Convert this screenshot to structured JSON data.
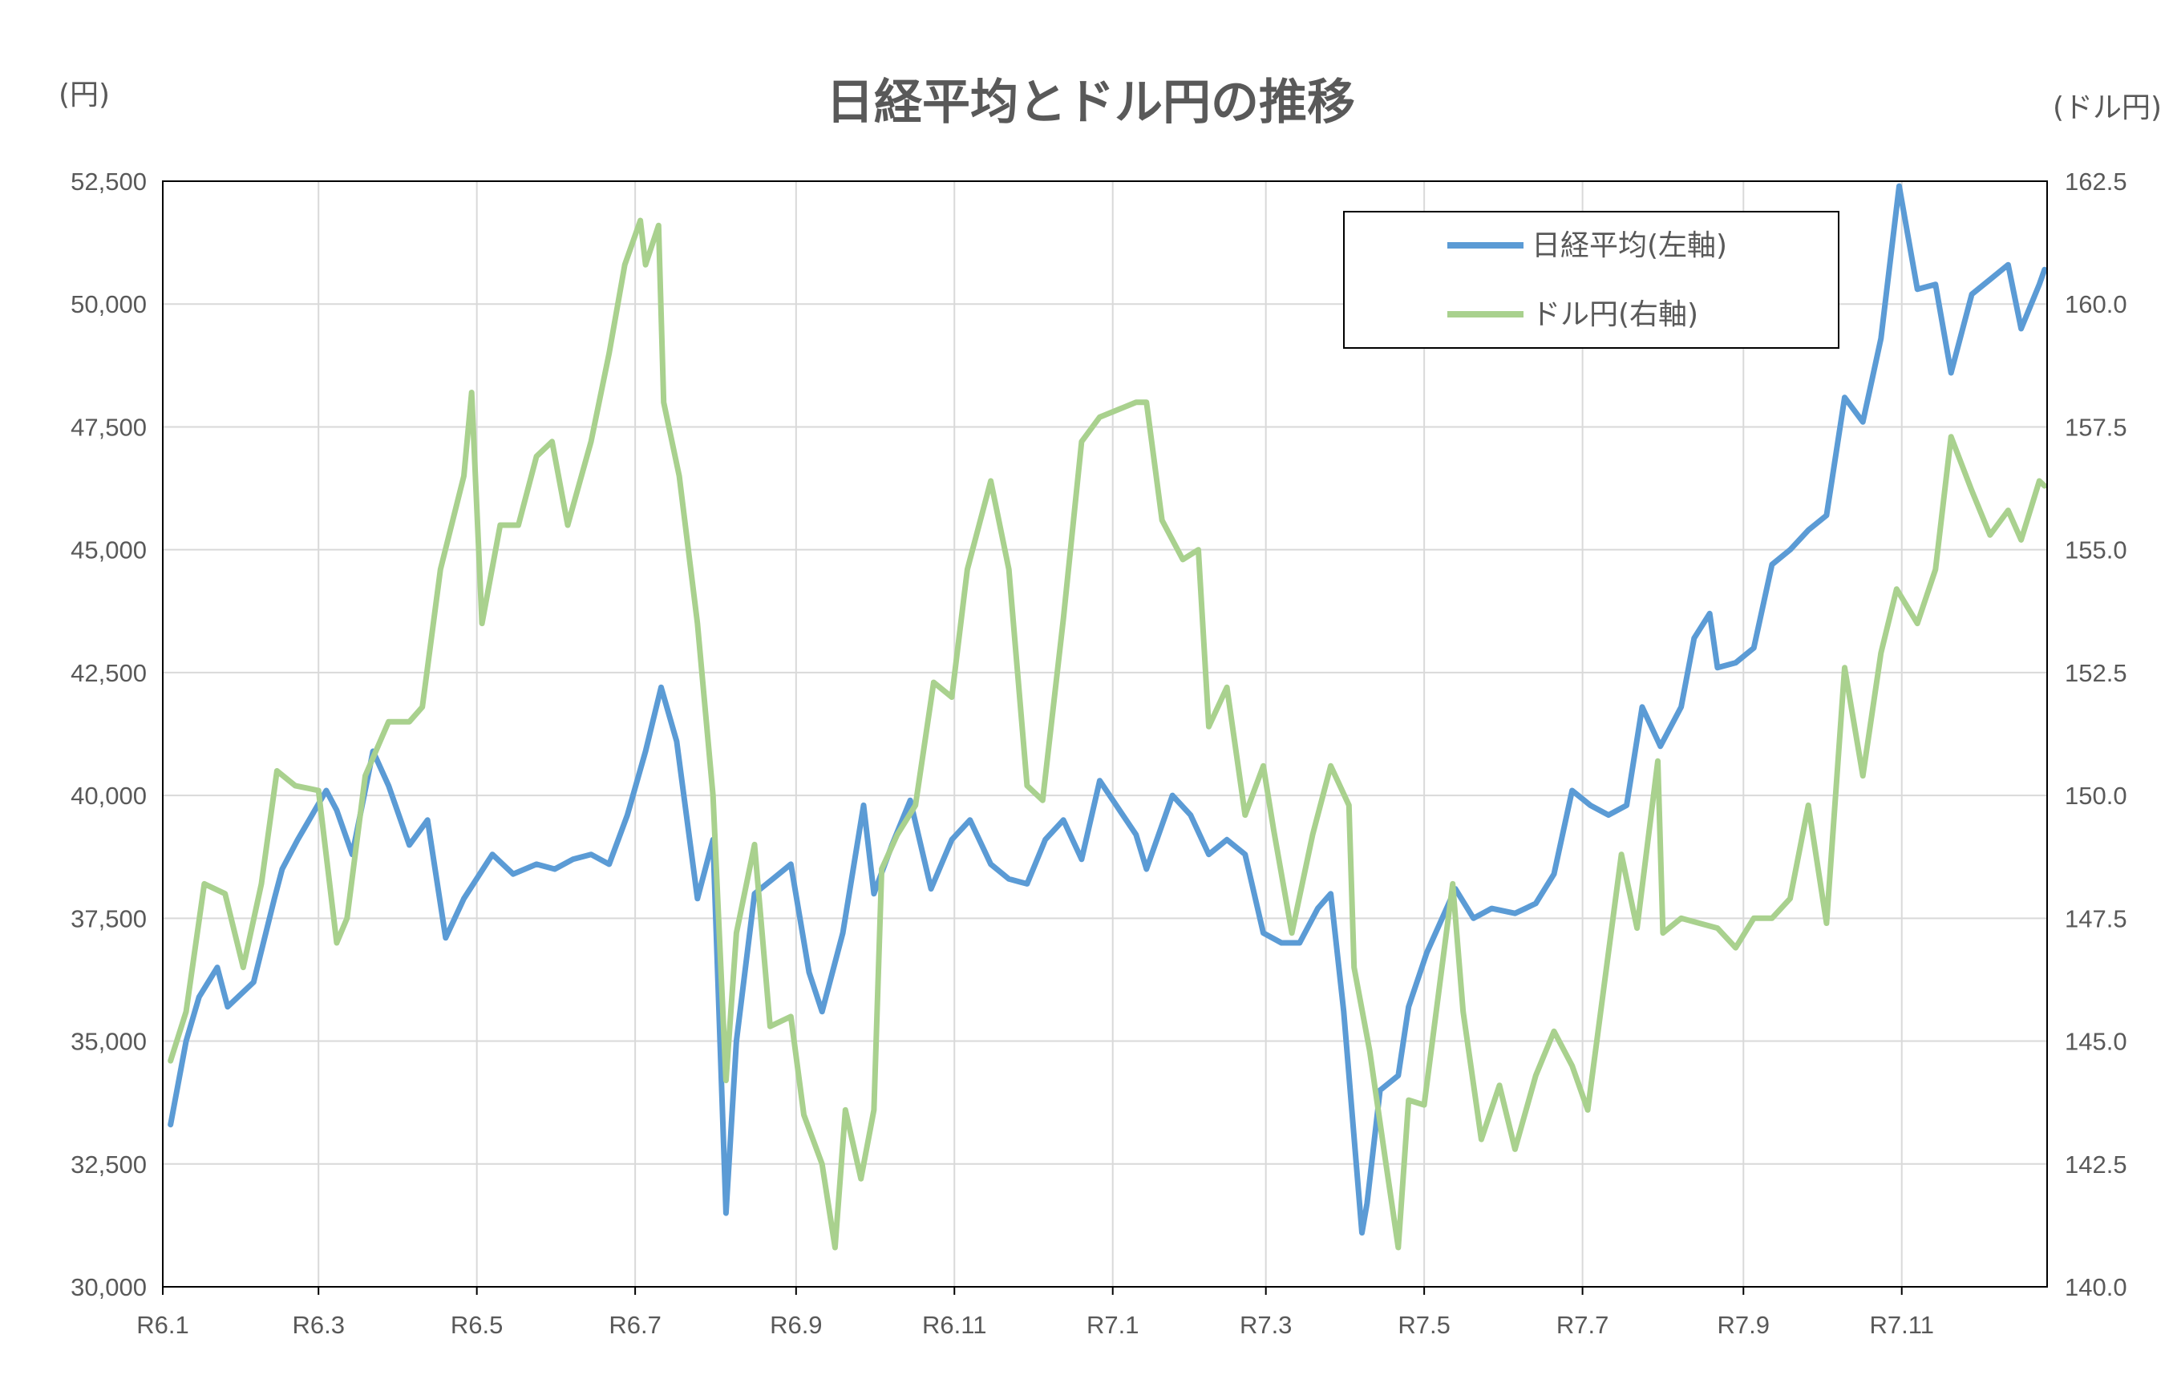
{
  "chart_data": {
    "type": "line",
    "title": "日経平均とドル円の推移",
    "left_unit": "(円)",
    "right_unit": "(ドル円)",
    "x_tick_labels": [
      "R6.1",
      "R6.3",
      "R6.5",
      "R6.7",
      "R6.9",
      "R6.11",
      "R7.1",
      "R7.3",
      "R7.5",
      "R7.7",
      "R7.9",
      "R7.11"
    ],
    "x_tick_dates": [
      "2024-01-01",
      "2024-03-01",
      "2024-05-01",
      "2024-07-01",
      "2024-09-01",
      "2024-11-01",
      "2025-01-01",
      "2025-03-01",
      "2025-05-01",
      "2025-07-01",
      "2025-09-01",
      "2025-11-01"
    ],
    "xlim": [
      "2024-01-01",
      "2025-12-27"
    ],
    "left_axis": {
      "ylim": [
        30000,
        52500
      ],
      "tick_labels": [
        "30,000",
        "32,500",
        "35,000",
        "37,500",
        "40,000",
        "42,500",
        "45,000",
        "47,500",
        "50,000",
        "52,500"
      ]
    },
    "right_axis": {
      "ylim": [
        140.0,
        162.5
      ],
      "tick_labels": [
        "140.0",
        "142.5",
        "145.0",
        "147.5",
        "150.0",
        "152.5",
        "155.0",
        "157.5",
        "160.0",
        "162.5"
      ]
    },
    "grid": true,
    "legend_placement": "top-right",
    "series": [
      {
        "name": "日経平均(左軸)",
        "axis": "left",
        "color": "#5B9BD5",
        "points": [
          [
            "2024-01-04",
            33300
          ],
          [
            "2024-01-10",
            35000
          ],
          [
            "2024-01-15",
            35900
          ],
          [
            "2024-01-22",
            36500
          ],
          [
            "2024-01-26",
            35700
          ],
          [
            "2024-02-05",
            36200
          ],
          [
            "2024-02-13",
            37900
          ],
          [
            "2024-02-16",
            38500
          ],
          [
            "2024-02-22",
            39100
          ],
          [
            "2024-03-04",
            40100
          ],
          [
            "2024-03-08",
            39700
          ],
          [
            "2024-03-14",
            38800
          ],
          [
            "2024-03-22",
            40900
          ],
          [
            "2024-03-28",
            40200
          ],
          [
            "2024-04-05",
            38990
          ],
          [
            "2024-04-12",
            39500
          ],
          [
            "2024-04-19",
            37100
          ],
          [
            "2024-04-26",
            37900
          ],
          [
            "2024-05-07",
            38800
          ],
          [
            "2024-05-15",
            38400
          ],
          [
            "2024-05-24",
            38600
          ],
          [
            "2024-05-31",
            38500
          ],
          [
            "2024-06-07",
            38700
          ],
          [
            "2024-06-14",
            38800
          ],
          [
            "2024-06-21",
            38600
          ],
          [
            "2024-06-28",
            39600
          ],
          [
            "2024-07-05",
            40900
          ],
          [
            "2024-07-11",
            42200
          ],
          [
            "2024-07-17",
            41100
          ],
          [
            "2024-07-25",
            37900
          ],
          [
            "2024-07-31",
            39100
          ],
          [
            "2024-08-05",
            31500
          ],
          [
            "2024-08-09",
            35000
          ],
          [
            "2024-08-16",
            38000
          ],
          [
            "2024-08-23",
            38300
          ],
          [
            "2024-08-30",
            38600
          ],
          [
            "2024-09-06",
            36400
          ],
          [
            "2024-09-11",
            35600
          ],
          [
            "2024-09-19",
            37200
          ],
          [
            "2024-09-27",
            39800
          ],
          [
            "2024-10-01",
            38000
          ],
          [
            "2024-10-08",
            39000
          ],
          [
            "2024-10-15",
            39900
          ],
          [
            "2024-10-23",
            38100
          ],
          [
            "2024-10-31",
            39100
          ],
          [
            "2024-11-07",
            39500
          ],
          [
            "2024-11-15",
            38600
          ],
          [
            "2024-11-22",
            38300
          ],
          [
            "2024-11-29",
            38200
          ],
          [
            "2024-12-06",
            39100
          ],
          [
            "2024-12-13",
            39500
          ],
          [
            "2024-12-20",
            38700
          ],
          [
            "2024-12-27",
            40300
          ],
          [
            "2025-01-10",
            39200
          ],
          [
            "2025-01-14",
            38500
          ],
          [
            "2025-01-24",
            40000
          ],
          [
            "2025-01-31",
            39600
          ],
          [
            "2025-02-07",
            38800
          ],
          [
            "2025-02-14",
            39100
          ],
          [
            "2025-02-21",
            38800
          ],
          [
            "2025-02-28",
            37200
          ],
          [
            "2025-03-07",
            37000
          ],
          [
            "2025-03-14",
            37000
          ],
          [
            "2025-03-21",
            37700
          ],
          [
            "2025-03-26",
            38000
          ],
          [
            "2025-03-31",
            35600
          ],
          [
            "2025-04-07",
            31100
          ],
          [
            "2025-04-09",
            31700
          ],
          [
            "2025-04-14",
            34000
          ],
          [
            "2025-04-21",
            34300
          ],
          [
            "2025-04-25",
            35700
          ],
          [
            "2025-05-02",
            36800
          ],
          [
            "2025-05-13",
            38100
          ],
          [
            "2025-05-20",
            37500
          ],
          [
            "2025-05-27",
            37700
          ],
          [
            "2025-06-05",
            37600
          ],
          [
            "2025-06-13",
            37800
          ],
          [
            "2025-06-20",
            38400
          ],
          [
            "2025-06-27",
            40100
          ],
          [
            "2025-07-04",
            39800
          ],
          [
            "2025-07-11",
            39600
          ],
          [
            "2025-07-18",
            39800
          ],
          [
            "2025-07-24",
            41800
          ],
          [
            "2025-07-31",
            41000
          ],
          [
            "2025-08-08",
            41800
          ],
          [
            "2025-08-13",
            43200
          ],
          [
            "2025-08-19",
            43700
          ],
          [
            "2025-08-22",
            42600
          ],
          [
            "2025-08-29",
            42700
          ],
          [
            "2025-09-05",
            43000
          ],
          [
            "2025-09-12",
            44700
          ],
          [
            "2025-09-19",
            45000
          ],
          [
            "2025-09-26",
            45400
          ],
          [
            "2025-10-03",
            45700
          ],
          [
            "2025-10-10",
            48100
          ],
          [
            "2025-10-17",
            47600
          ],
          [
            "2025-10-24",
            49300
          ],
          [
            "2025-10-31",
            52400
          ],
          [
            "2025-11-07",
            50300
          ],
          [
            "2025-11-14",
            50400
          ],
          [
            "2025-11-20",
            48600
          ],
          [
            "2025-11-28",
            50200
          ],
          [
            "2025-12-05",
            50500
          ],
          [
            "2025-12-12",
            50800
          ],
          [
            "2025-12-17",
            49500
          ],
          [
            "2025-12-24",
            50400
          ],
          [
            "2025-12-26",
            50700
          ]
        ]
      },
      {
        "name": "ドル円(右軸)",
        "axis": "right",
        "color": "#A9D18E",
        "points": [
          [
            "2024-01-04",
            144.6
          ],
          [
            "2024-01-10",
            145.6
          ],
          [
            "2024-01-17",
            148.2
          ],
          [
            "2024-01-25",
            148.0
          ],
          [
            "2024-02-01",
            146.5
          ],
          [
            "2024-02-08",
            148.2
          ],
          [
            "2024-02-14",
            150.5
          ],
          [
            "2024-02-21",
            150.2
          ],
          [
            "2024-03-01",
            150.1
          ],
          [
            "2024-03-08",
            147.0
          ],
          [
            "2024-03-12",
            147.5
          ],
          [
            "2024-03-19",
            150.4
          ],
          [
            "2024-03-28",
            151.5
          ],
          [
            "2024-04-05",
            151.5
          ],
          [
            "2024-04-10",
            151.8
          ],
          [
            "2024-04-17",
            154.6
          ],
          [
            "2024-04-26",
            156.5
          ],
          [
            "2024-04-29",
            158.2
          ],
          [
            "2024-05-03",
            153.5
          ],
          [
            "2024-05-10",
            155.5
          ],
          [
            "2024-05-17",
            155.5
          ],
          [
            "2024-05-24",
            156.9
          ],
          [
            "2024-05-30",
            157.2
          ],
          [
            "2024-06-05",
            155.5
          ],
          [
            "2024-06-14",
            157.2
          ],
          [
            "2024-06-21",
            159.0
          ],
          [
            "2024-06-27",
            160.8
          ],
          [
            "2024-07-03",
            161.7
          ],
          [
            "2024-07-05",
            160.8
          ],
          [
            "2024-07-10",
            161.6
          ],
          [
            "2024-07-12",
            158.0
          ],
          [
            "2024-07-18",
            156.5
          ],
          [
            "2024-07-25",
            153.5
          ],
          [
            "2024-07-31",
            150.0
          ],
          [
            "2024-08-05",
            144.2
          ],
          [
            "2024-08-09",
            147.2
          ],
          [
            "2024-08-16",
            149.0
          ],
          [
            "2024-08-22",
            145.3
          ],
          [
            "2024-08-30",
            145.5
          ],
          [
            "2024-09-04",
            143.5
          ],
          [
            "2024-09-11",
            142.5
          ],
          [
            "2024-09-16",
            140.8
          ],
          [
            "2024-09-20",
            143.6
          ],
          [
            "2024-09-26",
            142.2
          ],
          [
            "2024-10-01",
            143.6
          ],
          [
            "2024-10-04",
            148.5
          ],
          [
            "2024-10-10",
            149.2
          ],
          [
            "2024-10-17",
            149.8
          ],
          [
            "2024-10-24",
            152.3
          ],
          [
            "2024-10-31",
            152.0
          ],
          [
            "2024-11-06",
            154.6
          ],
          [
            "2024-11-15",
            156.4
          ],
          [
            "2024-11-22",
            154.6
          ],
          [
            "2024-11-29",
            150.2
          ],
          [
            "2024-12-05",
            149.9
          ],
          [
            "2024-12-13",
            153.6
          ],
          [
            "2024-12-20",
            157.2
          ],
          [
            "2024-12-27",
            157.7
          ],
          [
            "2025-01-10",
            158.0
          ],
          [
            "2025-01-14",
            158.0
          ],
          [
            "2025-01-20",
            155.6
          ],
          [
            "2025-01-28",
            154.8
          ],
          [
            "2025-02-03",
            155.0
          ],
          [
            "2025-02-07",
            151.4
          ],
          [
            "2025-02-14",
            152.2
          ],
          [
            "2025-02-21",
            149.6
          ],
          [
            "2025-02-28",
            150.6
          ],
          [
            "2025-03-04",
            149.3
          ],
          [
            "2025-03-11",
            147.2
          ],
          [
            "2025-03-19",
            149.2
          ],
          [
            "2025-03-26",
            150.6
          ],
          [
            "2025-04-02",
            149.8
          ],
          [
            "2025-04-04",
            146.5
          ],
          [
            "2025-04-10",
            144.8
          ],
          [
            "2025-04-16",
            142.6
          ],
          [
            "2025-04-21",
            140.8
          ],
          [
            "2025-04-25",
            143.8
          ],
          [
            "2025-05-01",
            143.7
          ],
          [
            "2025-05-12",
            148.2
          ],
          [
            "2025-05-16",
            145.6
          ],
          [
            "2025-05-23",
            143.0
          ],
          [
            "2025-05-30",
            144.1
          ],
          [
            "2025-06-05",
            142.8
          ],
          [
            "2025-06-13",
            144.3
          ],
          [
            "2025-06-20",
            145.2
          ],
          [
            "2025-06-27",
            144.5
          ],
          [
            "2025-07-03",
            143.6
          ],
          [
            "2025-07-10",
            146.4
          ],
          [
            "2025-07-16",
            148.8
          ],
          [
            "2025-07-22",
            147.3
          ],
          [
            "2025-07-30",
            150.7
          ],
          [
            "2025-08-01",
            147.2
          ],
          [
            "2025-08-08",
            147.5
          ],
          [
            "2025-08-15",
            147.4
          ],
          [
            "2025-08-22",
            147.3
          ],
          [
            "2025-08-29",
            146.9
          ],
          [
            "2025-09-05",
            147.5
          ],
          [
            "2025-09-12",
            147.5
          ],
          [
            "2025-09-19",
            147.9
          ],
          [
            "2025-09-26",
            149.8
          ],
          [
            "2025-10-03",
            147.4
          ],
          [
            "2025-10-10",
            152.6
          ],
          [
            "2025-10-17",
            150.4
          ],
          [
            "2025-10-24",
            152.9
          ],
          [
            "2025-10-30",
            154.2
          ],
          [
            "2025-11-07",
            153.5
          ],
          [
            "2025-11-14",
            154.6
          ],
          [
            "2025-11-20",
            157.3
          ],
          [
            "2025-11-28",
            156.2
          ],
          [
            "2025-12-05",
            155.3
          ],
          [
            "2025-12-12",
            155.8
          ],
          [
            "2025-12-17",
            155.2
          ],
          [
            "2025-12-24",
            156.4
          ],
          [
            "2025-12-26",
            156.3
          ]
        ]
      }
    ]
  }
}
